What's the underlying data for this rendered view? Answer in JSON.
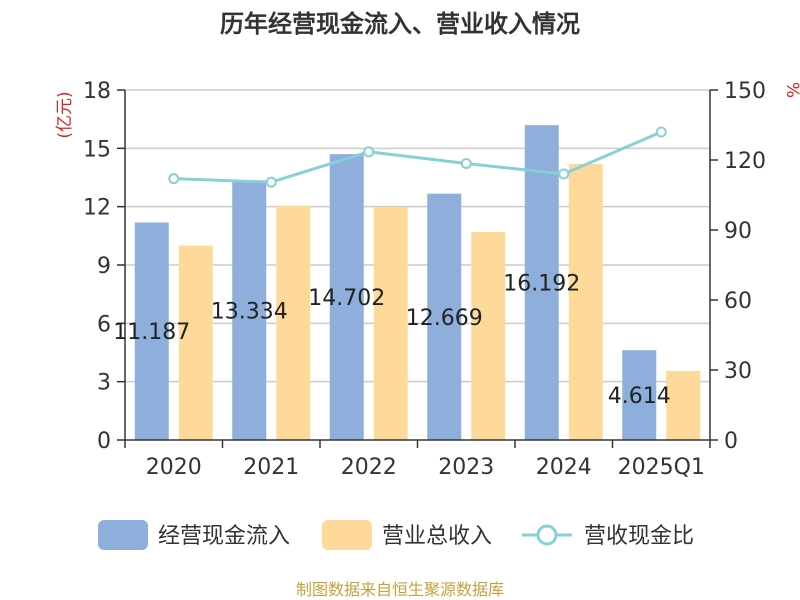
{
  "chart_data": {
    "type": "bar",
    "title": "历年经营现金流入、营业收入情况",
    "categories": [
      "2020",
      "2021",
      "2022",
      "2023",
      "2024",
      "2025Q1"
    ],
    "y_left": {
      "unit": "(亿元)",
      "ylim": [
        0,
        18
      ],
      "ticks": [
        "0",
        "3",
        "6",
        "9",
        "12",
        "15",
        "18"
      ]
    },
    "y_right": {
      "unit": "%",
      "ylim": [
        0,
        150
      ],
      "ticks": [
        "0",
        "30",
        "60",
        "90",
        "120",
        "150"
      ]
    },
    "series": [
      {
        "name": "经营现金流入",
        "type": "bar",
        "axis": "left",
        "color": "#8eaedc",
        "values": [
          11.187,
          13.334,
          14.702,
          12.669,
          16.192,
          4.614
        ],
        "labels": [
          "11.187",
          "13.334",
          "14.702",
          "12.669",
          "16.192",
          "4.614"
        ]
      },
      {
        "name": "营业总收入",
        "type": "bar",
        "axis": "left",
        "color": "#fdd99a",
        "values": [
          10.0,
          12.05,
          11.98,
          10.7,
          14.2,
          3.55
        ]
      },
      {
        "name": "营收现金比",
        "type": "line",
        "axis": "right",
        "color": "#86d0d6",
        "values": [
          112,
          110.5,
          123.5,
          118.5,
          114,
          132
        ]
      }
    ],
    "grid": true,
    "legend_position": "bottom"
  },
  "source": "制图数据来自恒生聚源数据库"
}
